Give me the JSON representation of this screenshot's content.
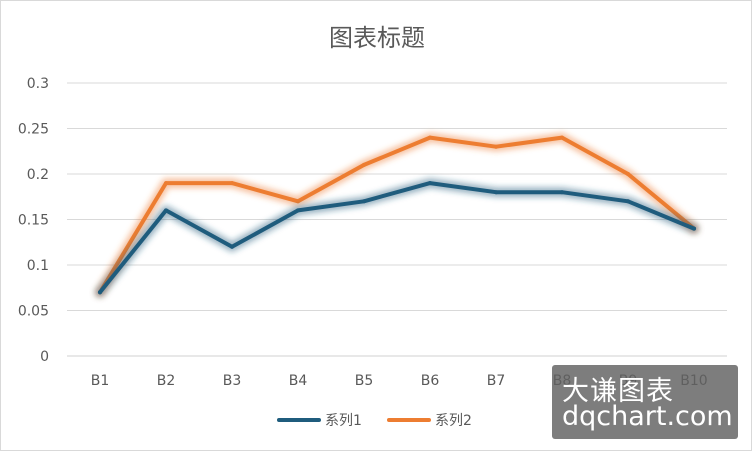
{
  "chart_data": {
    "type": "line",
    "title": "图表标题",
    "xlabel": "",
    "ylabel": "",
    "categories": [
      "B1",
      "B2",
      "B3",
      "B4",
      "B5",
      "B6",
      "B7",
      "B8",
      "B9",
      "B10"
    ],
    "series": [
      {
        "name": "系列1",
        "color": "#1f5c7d",
        "values": [
          0.07,
          0.16,
          0.12,
          0.16,
          0.17,
          0.19,
          0.18,
          0.18,
          0.17,
          0.14
        ]
      },
      {
        "name": "系列2",
        "color": "#ed7d31",
        "values": [
          0.07,
          0.19,
          0.19,
          0.17,
          0.21,
          0.24,
          0.23,
          0.24,
          0.2,
          0.14
        ]
      }
    ],
    "ylim": [
      0,
      0.3
    ],
    "yticks": [
      "0",
      "0.05",
      "0.1",
      "0.15",
      "0.2",
      "0.25",
      "0.3"
    ],
    "grid": true,
    "legend": "bottom"
  },
  "watermark": {
    "line1": "大谦图表",
    "line2": "dqchart.com"
  }
}
